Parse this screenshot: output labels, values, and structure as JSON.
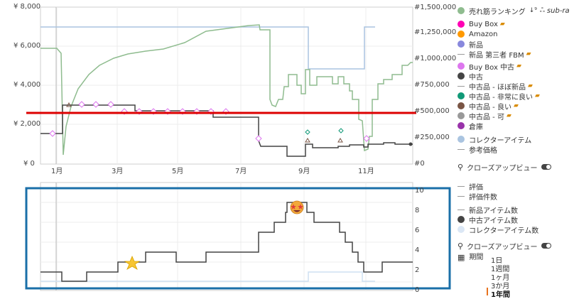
{
  "main_chart": {
    "y_left_ticks": [
      "¥ 8,000",
      "¥ 6,000",
      "¥ 4,000",
      "¥ 2,000",
      "¥ 0"
    ],
    "y_right_ticks": [
      "#1,500,000",
      "#1,250,000",
      "#1,000,000",
      "#750,000",
      "#500,000",
      "#250,000",
      "#0"
    ],
    "x_ticks": [
      "1月",
      "3月",
      "5月",
      "7月",
      "9月",
      "11月"
    ]
  },
  "sub_chart": {
    "y_right_ticks": [
      "10",
      "8",
      "6",
      "4",
      "2",
      "0"
    ]
  },
  "legend": {
    "sales_rank": "売れ筋ランキング",
    "sub_ranking": "sub-ra",
    "buy_box": "Buy Box",
    "amazon": "Amazon",
    "new": "新品",
    "new_3p_fbm": "新品 第三者 FBM",
    "buy_box_used": "Buy Box 中古",
    "used": "中古",
    "used_like_new": "中古品 - ほぼ新品",
    "used_very_good": "中古品 - 非常に良い",
    "used_good": "中古品 - 良い",
    "used_acceptable": "中古品 - 可",
    "warehouse": "倉庫",
    "collectible": "コレクターアイテム",
    "reference_price": "参考価格",
    "closeup_view": "クローズアップビュー",
    "rating": "評価",
    "rating_count": "評価件数",
    "new_offer_count": "新品アイテム数",
    "used_offer_count": "中古アイテム数",
    "collectible_offer_count": "コレクターアイテム数",
    "closeup_view_2": "クローズアップビュー"
  },
  "period": {
    "label": "期間",
    "options": [
      "1日",
      "1週間",
      "1ヶ月",
      "3か月",
      "1年間"
    ],
    "selected": "1年間"
  },
  "colors": {
    "sales_rank": "#8fbc8f",
    "buy_box": "#ff00b4",
    "amazon": "#ff9900",
    "new": "#8888dd",
    "buy_box_used": "#dd77ee",
    "used": "#444444",
    "used_very_good": "#119977",
    "used_good": "#7a5544",
    "used_acceptable": "#999999",
    "warehouse": "#9933aa",
    "collectible": "#aac4e0",
    "annotation_red": "#dd0000",
    "annotation_blue": "#1a6fa8"
  }
}
